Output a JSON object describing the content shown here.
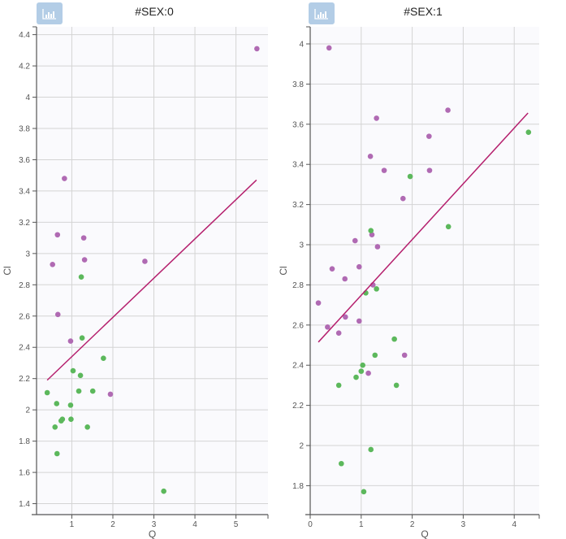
{
  "chart_data": [
    {
      "type": "scatter",
      "title": "#SEX:0",
      "xlabel": "Q",
      "ylabel": "Cl",
      "xlim": [
        0.14,
        5.78
      ],
      "ylim": [
        1.33,
        4.45
      ],
      "xticks": [
        1,
        2,
        3,
        4,
        5
      ],
      "yticks": [
        1.4,
        1.6,
        1.8,
        2,
        2.2,
        2.4,
        2.6,
        2.8,
        3,
        3.2,
        3.4,
        3.6,
        3.8,
        4,
        4.2,
        4.4
      ],
      "grid": true,
      "series": [
        {
          "name": "purple",
          "color": "#b06ab3",
          "points": [
            [
              5.51,
              4.31
            ],
            [
              0.82,
              3.48
            ],
            [
              0.65,
              3.12
            ],
            [
              1.29,
              3.1
            ],
            [
              1.31,
              2.96
            ],
            [
              0.53,
              2.93
            ],
            [
              2.78,
              2.95
            ],
            [
              0.66,
              2.61
            ],
            [
              0.97,
              2.44
            ],
            [
              1.94,
              2.1
            ]
          ]
        },
        {
          "name": "green",
          "color": "#5cb85c",
          "points": [
            [
              1.23,
              2.85
            ],
            [
              1.25,
              2.46
            ],
            [
              1.77,
              2.33
            ],
            [
              1.03,
              2.25
            ],
            [
              1.21,
              2.22
            ],
            [
              1.17,
              2.12
            ],
            [
              1.51,
              2.12
            ],
            [
              0.4,
              2.11
            ],
            [
              0.63,
              2.04
            ],
            [
              0.97,
              2.03
            ],
            [
              0.77,
              1.94
            ],
            [
              0.74,
              1.93
            ],
            [
              0.98,
              1.94
            ],
            [
              1.38,
              1.89
            ],
            [
              0.59,
              1.89
            ],
            [
              0.64,
              1.72
            ],
            [
              3.24,
              1.48
            ]
          ]
        }
      ],
      "regression_line": {
        "color": "#b5206e",
        "from": [
          0.4,
          2.19
        ],
        "to": [
          5.5,
          3.47
        ]
      }
    },
    {
      "type": "scatter",
      "title": "#SEX:1",
      "xlabel": "Q",
      "ylabel": "Cl",
      "xlim": [
        0,
        4.49
      ],
      "ylim": [
        1.656,
        4.085
      ],
      "xticks": [
        0,
        1,
        2,
        3,
        4
      ],
      "yticks": [
        1.8,
        2,
        2.2,
        2.4,
        2.6,
        2.8,
        3,
        3.2,
        3.4,
        3.6,
        3.8,
        4
      ],
      "grid": true,
      "series": [
        {
          "name": "purple",
          "color": "#b06ab3",
          "points": [
            [
              0.37,
              3.98
            ],
            [
              2.7,
              3.67
            ],
            [
              1.3,
              3.63
            ],
            [
              2.33,
              3.54
            ],
            [
              1.18,
              3.44
            ],
            [
              1.45,
              3.37
            ],
            [
              2.34,
              3.37
            ],
            [
              1.82,
              3.23
            ],
            [
              1.21,
              3.05
            ],
            [
              0.88,
              3.02
            ],
            [
              1.32,
              2.99
            ],
            [
              0.96,
              2.89
            ],
            [
              0.43,
              2.88
            ],
            [
              0.68,
              2.83
            ],
            [
              1.23,
              2.8
            ],
            [
              0.16,
              2.71
            ],
            [
              0.69,
              2.64
            ],
            [
              0.96,
              2.62
            ],
            [
              0.34,
              2.59
            ],
            [
              0.56,
              2.56
            ],
            [
              1.85,
              2.45
            ],
            [
              1.14,
              2.36
            ]
          ]
        },
        {
          "name": "green",
          "color": "#5cb85c",
          "points": [
            [
              4.28,
              3.56
            ],
            [
              1.96,
              3.34
            ],
            [
              2.71,
              3.09
            ],
            [
              1.19,
              3.07
            ],
            [
              1.3,
              2.78
            ],
            [
              1.09,
              2.76
            ],
            [
              1.65,
              2.53
            ],
            [
              1.27,
              2.45
            ],
            [
              1.03,
              2.4
            ],
            [
              1.0,
              2.37
            ],
            [
              0.9,
              2.34
            ],
            [
              0.56,
              2.3
            ],
            [
              1.69,
              2.3
            ],
            [
              1.19,
              1.98
            ],
            [
              0.61,
              1.91
            ],
            [
              1.05,
              1.77
            ]
          ]
        }
      ],
      "regression_line": {
        "color": "#b5206e",
        "from": [
          0.16,
          2.515
        ],
        "to": [
          4.27,
          3.656
        ]
      }
    }
  ],
  "panels": [
    {
      "title": "#SEX:0",
      "icon": "bar-chart-icon",
      "xlabel": "Q",
      "ylabel": "Cl"
    },
    {
      "title": "#SEX:1",
      "icon": "bar-chart-icon",
      "xlabel": "Q",
      "ylabel": "Cl"
    }
  ],
  "colors": {
    "plot_bg": "#fafafd",
    "grid": "#d4d4d4",
    "axis": "#555555",
    "icon_bg": "#b3cde6"
  }
}
